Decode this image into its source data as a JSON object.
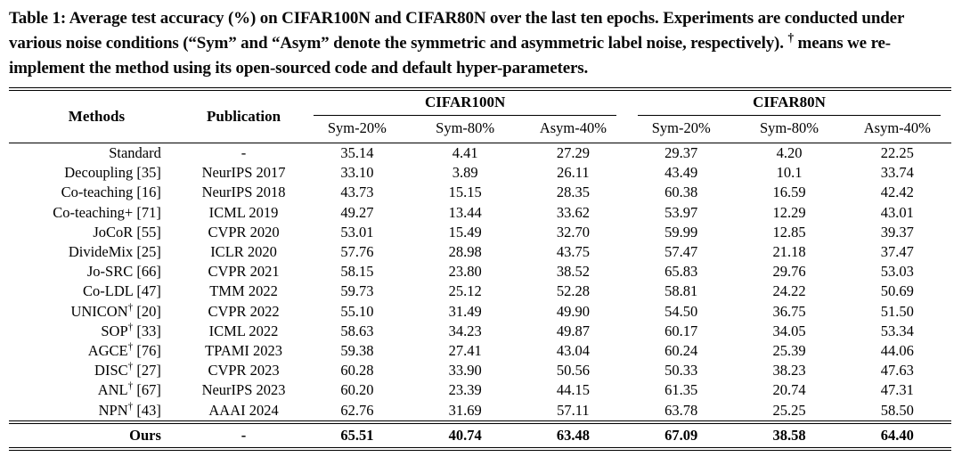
{
  "caption": {
    "before_dagger": "Table 1: Average test accuracy (%) on CIFAR100N and CIFAR80N over the last ten epochs. Experiments are conducted under various noise conditions (“Sym” and “Asym” denote the symmetric and asymmetric label noise, respectively). ",
    "dagger": "†",
    "after_dagger": " means we re-implement the method using its open-sourced code and default hyper-parameters."
  },
  "table": {
    "dagger_symbol": "†",
    "col_headers": {
      "methods": "Methods",
      "publication": "Publication"
    },
    "groups": [
      {
        "label": "CIFAR100N",
        "subcols": [
          "Sym-20%",
          "Sym-80%",
          "Asym-40%"
        ]
      },
      {
        "label": "CIFAR80N",
        "subcols": [
          "Sym-20%",
          "Sym-80%",
          "Asym-40%"
        ]
      }
    ],
    "rows": [
      {
        "method": "Standard",
        "dagger": false,
        "ref": "",
        "publication": "-",
        "values": [
          "35.14",
          "4.41",
          "27.29",
          "29.37",
          "4.20",
          "22.25"
        ]
      },
      {
        "method": "Decoupling",
        "dagger": false,
        "ref": "[35]",
        "publication": "NeurIPS 2017",
        "values": [
          "33.10",
          "3.89",
          "26.11",
          "43.49",
          "10.1",
          "33.74"
        ]
      },
      {
        "method": "Co-teaching",
        "dagger": false,
        "ref": "[16]",
        "publication": "NeurIPS 2018",
        "values": [
          "43.73",
          "15.15",
          "28.35",
          "60.38",
          "16.59",
          "42.42"
        ]
      },
      {
        "method": "Co-teaching+",
        "dagger": false,
        "ref": "[71]",
        "publication": "ICML 2019",
        "values": [
          "49.27",
          "13.44",
          "33.62",
          "53.97",
          "12.29",
          "43.01"
        ]
      },
      {
        "method": "JoCoR",
        "dagger": false,
        "ref": "[55]",
        "publication": "CVPR 2020",
        "values": [
          "53.01",
          "15.49",
          "32.70",
          "59.99",
          "12.85",
          "39.37"
        ]
      },
      {
        "method": "DivideMix",
        "dagger": false,
        "ref": "[25]",
        "publication": "ICLR 2020",
        "values": [
          "57.76",
          "28.98",
          "43.75",
          "57.47",
          "21.18",
          "37.47"
        ]
      },
      {
        "method": "Jo-SRC",
        "dagger": false,
        "ref": "[66]",
        "publication": "CVPR 2021",
        "values": [
          "58.15",
          "23.80",
          "38.52",
          "65.83",
          "29.76",
          "53.03"
        ]
      },
      {
        "method": "Co-LDL",
        "dagger": false,
        "ref": "[47]",
        "publication": "TMM 2022",
        "values": [
          "59.73",
          "25.12",
          "52.28",
          "58.81",
          "24.22",
          "50.69"
        ]
      },
      {
        "method": "UNICON",
        "dagger": true,
        "ref": "[20]",
        "publication": "CVPR 2022",
        "values": [
          "55.10",
          "31.49",
          "49.90",
          "54.50",
          "36.75",
          "51.50"
        ]
      },
      {
        "method": "SOP",
        "dagger": true,
        "ref": "[33]",
        "publication": "ICML 2022",
        "values": [
          "58.63",
          "34.23",
          "49.87",
          "60.17",
          "34.05",
          "53.34"
        ]
      },
      {
        "method": "AGCE",
        "dagger": true,
        "ref": "[76]",
        "publication": "TPAMI 2023",
        "values": [
          "59.38",
          "27.41",
          "43.04",
          "60.24",
          "25.39",
          "44.06"
        ]
      },
      {
        "method": "DISC",
        "dagger": true,
        "ref": "[27]",
        "publication": "CVPR 2023",
        "values": [
          "60.28",
          "33.90",
          "50.56",
          "50.33",
          "38.23",
          "47.63"
        ]
      },
      {
        "method": "ANL",
        "dagger": true,
        "ref": "[67]",
        "publication": "NeurIPS 2023",
        "values": [
          "60.20",
          "23.39",
          "44.15",
          "61.35",
          "20.74",
          "47.31"
        ]
      },
      {
        "method": "NPN",
        "dagger": true,
        "ref": "[43]",
        "publication": "AAAI 2024",
        "values": [
          "62.76",
          "31.69",
          "57.11",
          "63.78",
          "25.25",
          "58.50"
        ]
      }
    ],
    "footer": {
      "method": "Ours",
      "publication": "-",
      "values": [
        "65.51",
        "40.74",
        "63.48",
        "67.09",
        "38.58",
        "64.40"
      ]
    }
  },
  "colors": {
    "text": "#000000",
    "background": "#ffffff",
    "rule": "#000000"
  }
}
